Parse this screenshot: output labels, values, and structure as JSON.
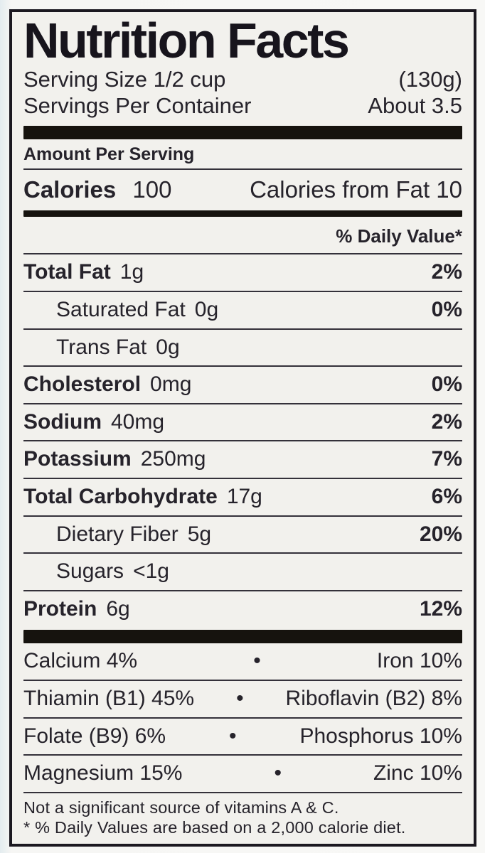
{
  "colors": {
    "text": "#26232b",
    "rule": "#34313a",
    "bar": "#16130e",
    "label_bg": "#f2f1ed",
    "page_bg": "#f8f8f6",
    "page_edge_tint": "#e3ecef"
  },
  "label": {
    "title": "Nutrition Facts",
    "serving_size_label": "Serving Size 1/2 cup",
    "serving_size_weight": "(130g)",
    "servings_per_container_label": "Servings Per Container",
    "servings_per_container_value": "About 3.5",
    "amount_per_serving": "Amount Per Serving",
    "calories_label": "Calories",
    "calories_value": "100",
    "calories_from_fat": "Calories from Fat 10",
    "daily_value_header": "% Daily Value*",
    "nutrients": [
      {
        "name": "Total Fat",
        "amount": "1g",
        "dv": "2%"
      },
      {
        "name": "Saturated Fat",
        "amount": "0g",
        "dv": "0%"
      },
      {
        "name": "Trans Fat",
        "amount": "0g",
        "dv": ""
      },
      {
        "name": "Cholesterol",
        "amount": "0mg",
        "dv": "0%"
      },
      {
        "name": "Sodium",
        "amount": "40mg",
        "dv": "2%"
      },
      {
        "name": "Potassium",
        "amount": "250mg",
        "dv": "7%"
      },
      {
        "name": "Total Carbohydrate",
        "amount": "17g",
        "dv": "6%"
      },
      {
        "name": "Dietary Fiber",
        "amount": "5g",
        "dv": "20%"
      },
      {
        "name": "Sugars",
        "amount": "<1g",
        "dv": ""
      },
      {
        "name": "Protein",
        "amount": "6g",
        "dv": "12%"
      }
    ],
    "bullet": "•",
    "micronutrients": [
      {
        "left": "Calcium 4%",
        "right": "Iron 10%"
      },
      {
        "left": "Thiamin (B1) 45%",
        "right": "Riboflavin (B2) 8%"
      },
      {
        "left": "Folate (B9) 6%",
        "right": "Phosphorus 10%"
      },
      {
        "left": "Magnesium 15%",
        "right": "Zinc 10%"
      }
    ],
    "footnotes": [
      "Not a significant source of vitamins A & C.",
      "* % Daily Values are based on a 2,000 calorie diet."
    ]
  }
}
